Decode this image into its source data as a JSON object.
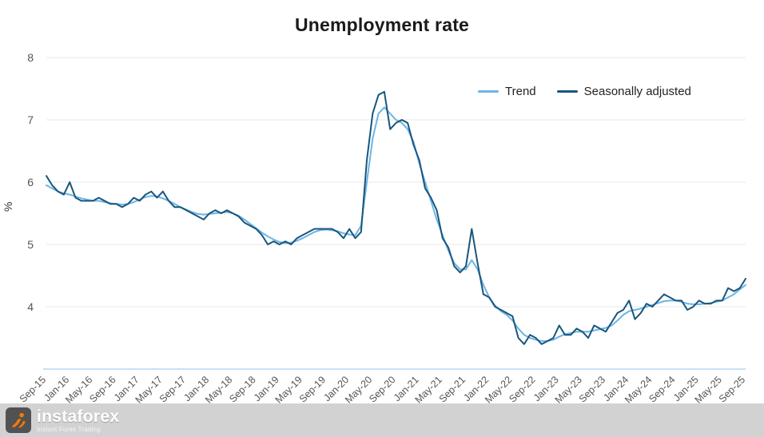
{
  "title": "Unemployment rate",
  "ylabel": "%",
  "footer": {
    "brand": "instaforex",
    "tagline": "Instant Forex Trading"
  },
  "colors": {
    "trend": "#6db4e4",
    "seasonally_adjusted": "#18567d",
    "gridline": "#e7e7e7",
    "axis_line": "#a9cfe9",
    "tick_text": "#555555"
  },
  "chart_data": {
    "type": "line",
    "title": "Unemployment rate",
    "xlabel": "",
    "ylabel": "%",
    "ylim": [
      3,
      8
    ],
    "yticks": [
      4,
      5,
      6,
      7,
      8
    ],
    "grid": "horizontal",
    "legend_position": "top-right",
    "x_tick_labels": [
      "Sep-15",
      "Jan-16",
      "May-16",
      "Sep-16",
      "Jan-17",
      "May-17",
      "Sep-17",
      "Jan-18",
      "May-18",
      "Sep-18",
      "Jan-19",
      "May-19",
      "Sep-19",
      "Jan-20",
      "May-20",
      "Sep-20",
      "Jan-21",
      "May-21",
      "Sep-21",
      "Jan-22",
      "May-22",
      "Sep-22",
      "Jan-23",
      "May-23",
      "Sep-23",
      "Jan-24",
      "May-24",
      "Sep-24",
      "Jan-25",
      "May-25",
      "Sep-25"
    ],
    "x_tick_every_n_months": 4,
    "x_start": "Sep-2015",
    "x_end": "Sep-2025",
    "series": [
      {
        "name": "Trend",
        "color": "#6db4e4",
        "values": [
          5.95,
          5.9,
          5.85,
          5.82,
          5.8,
          5.77,
          5.74,
          5.72,
          5.7,
          5.7,
          5.68,
          5.66,
          5.65,
          5.64,
          5.65,
          5.68,
          5.72,
          5.76,
          5.78,
          5.77,
          5.74,
          5.7,
          5.65,
          5.6,
          5.56,
          5.52,
          5.49,
          5.48,
          5.49,
          5.5,
          5.51,
          5.52,
          5.5,
          5.46,
          5.4,
          5.33,
          5.26,
          5.19,
          5.13,
          5.08,
          5.04,
          5.02,
          5.03,
          5.06,
          5.1,
          5.15,
          5.2,
          5.23,
          5.24,
          5.23,
          5.21,
          5.18,
          5.16,
          5.15,
          5.3,
          6.0,
          6.7,
          7.1,
          7.2,
          7.1,
          7.0,
          6.95,
          6.85,
          6.65,
          6.3,
          6.0,
          5.7,
          5.4,
          5.15,
          4.9,
          4.7,
          4.6,
          4.6,
          4.75,
          4.6,
          4.35,
          4.15,
          4.02,
          3.93,
          3.87,
          3.78,
          3.65,
          3.55,
          3.5,
          3.47,
          3.45,
          3.45,
          3.47,
          3.52,
          3.56,
          3.58,
          3.6,
          3.6,
          3.6,
          3.62,
          3.64,
          3.66,
          3.7,
          3.78,
          3.87,
          3.93,
          3.95,
          3.97,
          4.0,
          4.03,
          4.06,
          4.09,
          4.1,
          4.1,
          4.08,
          4.05,
          4.04,
          4.04,
          4.05,
          4.06,
          4.08,
          4.1,
          4.15,
          4.2,
          4.28,
          4.35
        ]
      },
      {
        "name": "Seasonally adjusted",
        "color": "#18567d",
        "values": [
          6.1,
          5.95,
          5.85,
          5.8,
          6.0,
          5.75,
          5.7,
          5.7,
          5.7,
          5.75,
          5.7,
          5.65,
          5.65,
          5.6,
          5.65,
          5.75,
          5.7,
          5.8,
          5.85,
          5.75,
          5.85,
          5.7,
          5.6,
          5.6,
          5.55,
          5.5,
          5.45,
          5.4,
          5.5,
          5.55,
          5.5,
          5.55,
          5.5,
          5.45,
          5.35,
          5.3,
          5.25,
          5.15,
          5.0,
          5.05,
          5.0,
          5.05,
          5.0,
          5.1,
          5.15,
          5.2,
          5.25,
          5.25,
          5.25,
          5.25,
          5.2,
          5.1,
          5.25,
          5.1,
          5.2,
          6.35,
          7.1,
          7.4,
          7.45,
          6.85,
          6.95,
          7.0,
          6.95,
          6.6,
          6.35,
          5.9,
          5.75,
          5.55,
          5.1,
          4.95,
          4.65,
          4.55,
          4.65,
          5.25,
          4.7,
          4.2,
          4.15,
          4.0,
          3.95,
          3.9,
          3.85,
          3.5,
          3.4,
          3.55,
          3.5,
          3.4,
          3.45,
          3.5,
          3.7,
          3.55,
          3.55,
          3.65,
          3.6,
          3.5,
          3.7,
          3.65,
          3.6,
          3.75,
          3.9,
          3.95,
          4.1,
          3.8,
          3.9,
          4.05,
          4.0,
          4.1,
          4.2,
          4.15,
          4.1,
          4.1,
          3.95,
          4.0,
          4.1,
          4.05,
          4.05,
          4.1,
          4.1,
          4.3,
          4.25,
          4.3,
          4.45
        ]
      }
    ]
  }
}
